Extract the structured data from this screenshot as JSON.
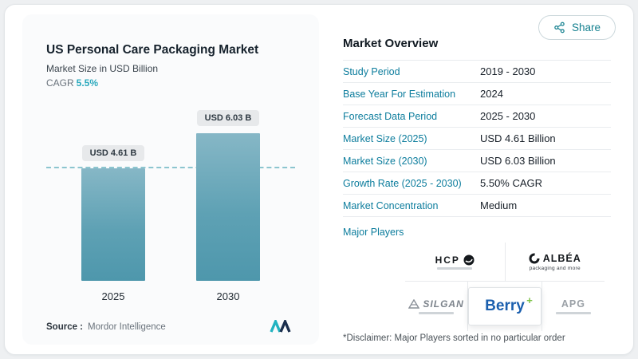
{
  "colors": {
    "accent": "#0d7d9d",
    "teal_highlight": "#2aa9bd",
    "bar_top": "#86b7c6",
    "bar_bottom": "#4e97ac",
    "dash_line": "#8cc5cf"
  },
  "share": {
    "label": "Share"
  },
  "chart": {
    "title": "US Personal Care Packaging Market",
    "subtitle": "Market Size in USD Billion",
    "cagr_label": "CAGR",
    "cagr_value": "5.5%",
    "source_label": "Source :",
    "source_value": "Mordor Intelligence"
  },
  "chart_data": {
    "type": "bar",
    "title": "US Personal Care Packaging Market",
    "ylabel": "Market Size in USD Billion",
    "categories": [
      "2025",
      "2030"
    ],
    "values": [
      4.61,
      6.03
    ],
    "bar_labels": [
      "USD 4.61 B",
      "USD 6.03 B"
    ],
    "reference_line": 4.61,
    "ylim": [
      0,
      6.5
    ],
    "grid": false,
    "legend": false
  },
  "overview": {
    "title": "Market Overview",
    "rows": [
      {
        "label": "Study Period",
        "value": "2019 - 2030"
      },
      {
        "label": "Base Year For Estimation",
        "value": "2024"
      },
      {
        "label": "Forecast Data Period",
        "value": "2025 - 2030"
      },
      {
        "label": "Market Size (2025)",
        "value": "USD 4.61 Billion"
      },
      {
        "label": "Market Size (2030)",
        "value": "USD 6.03 Billion"
      },
      {
        "label": "Growth Rate (2025 - 2030)",
        "value": "5.50% CAGR"
      },
      {
        "label": "Market Concentration",
        "value": "Medium"
      }
    ],
    "major_players_label": "Major Players",
    "players": [
      {
        "name": "HCP"
      },
      {
        "name": "ALBÉA",
        "tagline": "packaging and more"
      },
      {
        "name": "SILGAN"
      },
      {
        "name": "Berry"
      },
      {
        "name": "APG"
      }
    ],
    "disclaimer": "*Disclaimer: Major Players sorted in no particular order"
  }
}
